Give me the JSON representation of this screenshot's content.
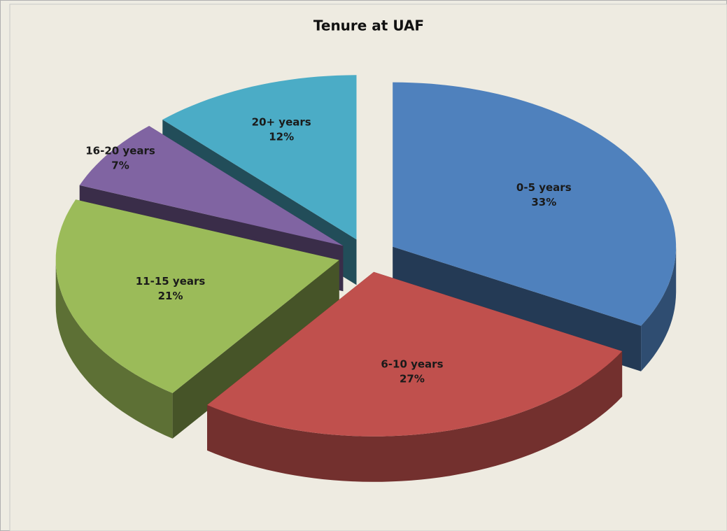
{
  "chart_data": {
    "type": "pie",
    "title": "Tenure at UAF",
    "categories": [
      "0-5 years",
      "6-10 years",
      "11-15 years",
      "16-20 years",
      "20+ years"
    ],
    "values": [
      33,
      27,
      21,
      7,
      12
    ],
    "value_labels": [
      "33%",
      "27%",
      "21%",
      "7%",
      "12%"
    ],
    "colors": [
      "#4f81bd",
      "#c0504d",
      "#9bbb59",
      "#8064a2",
      "#4bacc6"
    ]
  }
}
